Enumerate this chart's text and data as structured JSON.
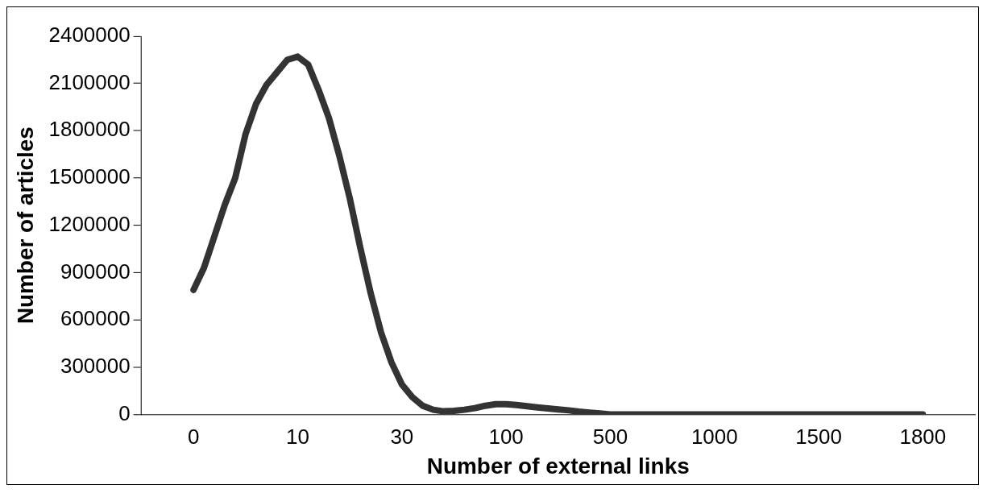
{
  "chart_data": {
    "type": "line",
    "xlabel": "Number of external links",
    "ylabel": "Number of articles",
    "categories": [
      "0",
      null,
      null,
      null,
      null,
      null,
      null,
      null,
      null,
      null,
      "10",
      null,
      null,
      null,
      null,
      null,
      null,
      null,
      null,
      null,
      "30",
      null,
      null,
      null,
      null,
      null,
      null,
      null,
      null,
      null,
      "100",
      null,
      null,
      null,
      null,
      null,
      null,
      null,
      null,
      null,
      "500",
      null,
      null,
      null,
      null,
      null,
      null,
      null,
      null,
      null,
      "1000",
      null,
      null,
      null,
      null,
      null,
      null,
      null,
      null,
      null,
      "1500",
      null,
      null,
      null,
      null,
      null,
      null,
      null,
      null,
      null,
      "1800"
    ],
    "series": [
      {
        "color": "#333333",
        "values": [
          790000,
          930000,
          1130000,
          1330000,
          1500000,
          1780000,
          1970000,
          2090000,
          2170000,
          2250000,
          2270000,
          2220000,
          2060000,
          1880000,
          1640000,
          1370000,
          1060000,
          770000,
          520000,
          330000,
          190000,
          110000,
          55000,
          30000,
          20000,
          23000,
          30000,
          40000,
          55000,
          65000,
          65000,
          60000,
          52000,
          45000,
          38000,
          32000,
          26000,
          18000,
          12000,
          6000,
          0,
          0,
          0,
          0,
          0,
          0,
          0,
          0,
          0,
          0,
          0,
          0,
          0,
          0,
          0,
          0,
          0,
          0,
          0,
          0,
          0,
          0,
          0,
          0,
          0,
          0,
          0,
          0,
          0,
          0,
          0
        ]
      }
    ],
    "ylim": [
      0,
      2400000
    ],
    "yticks": [
      0,
      300000,
      600000,
      900000,
      1200000,
      1500000,
      1800000,
      2100000,
      2400000
    ],
    "grid": false,
    "legend": false,
    "marker": "none",
    "line_style": "solid"
  }
}
